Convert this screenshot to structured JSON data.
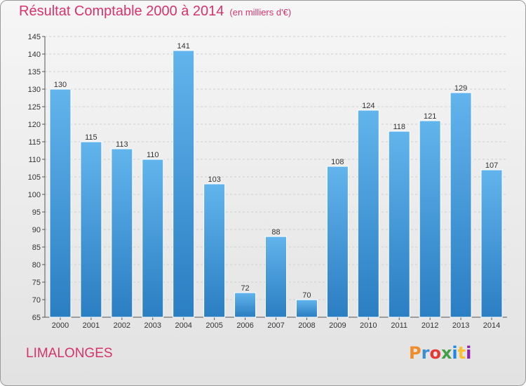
{
  "header": {
    "title": "Résultat Comptable 2000 à 2014",
    "subtitle": "(en milliers d'€)"
  },
  "footer": {
    "commune": "LIMALONGES",
    "logo_text": "Proxiti",
    "logo_colors": [
      "#f28c28",
      "#3a8ed8",
      "#e53935",
      "#43a047",
      "#1e88e5",
      "#fbc02d",
      "#8e24aa"
    ]
  },
  "colors": {
    "bar_top": "#62b4ec",
    "bar_bottom": "#2a7ec2",
    "title": "#d6336c",
    "grid": "#cfcfcf"
  },
  "chart_data": {
    "type": "bar",
    "title": "Résultat Comptable 2000 à 2014",
    "subtitle": "(en milliers d'€)",
    "xlabel": "",
    "ylabel": "",
    "ylim": [
      65,
      145
    ],
    "yticks": [
      65,
      70,
      75,
      80,
      85,
      90,
      95,
      100,
      105,
      110,
      115,
      120,
      125,
      130,
      135,
      140,
      145
    ],
    "grid": true,
    "categories": [
      "2000",
      "2001",
      "2002",
      "2003",
      "2004",
      "2005",
      "2006",
      "2007",
      "2008",
      "2009",
      "2010",
      "2011",
      "2012",
      "2013",
      "2014"
    ],
    "values": [
      130,
      115,
      113,
      110,
      141,
      103,
      72,
      88,
      70,
      108,
      124,
      118,
      121,
      129,
      107
    ]
  }
}
